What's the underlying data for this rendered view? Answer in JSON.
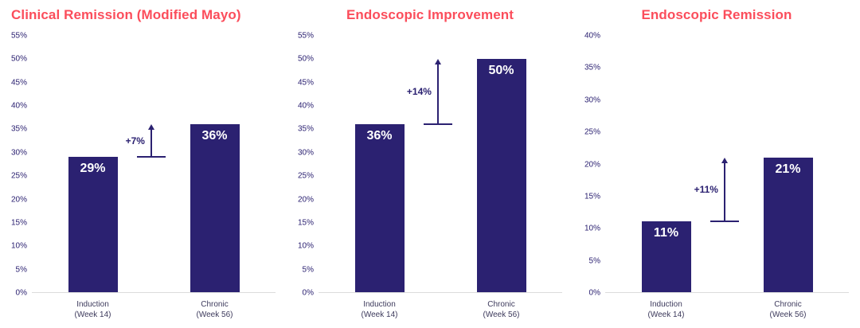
{
  "colors": {
    "title_red": "#FB4D5B",
    "bar_indigo": "#2B2171",
    "axis_text": "#2B2171",
    "category_text": "#3D3A5C",
    "baseline_gray": "#DCDCDC",
    "background": "#FFFFFF"
  },
  "chart_data": [
    {
      "type": "bar",
      "title": "Clinical Remission (Modified Mayo)",
      "categories": [
        {
          "label": "Induction",
          "sub": "(Week 14)"
        },
        {
          "label": "Chronic",
          "sub": "(Week 56)"
        }
      ],
      "values": [
        29,
        36
      ],
      "value_labels": [
        "29%",
        "36%"
      ],
      "delta": 7,
      "delta_label": "+7%",
      "ylim": [
        0,
        55
      ],
      "ytick_step": 5,
      "ytick_format": "percent",
      "grid": false,
      "legend": false
    },
    {
      "type": "bar",
      "title": "Endoscopic Improvement",
      "categories": [
        {
          "label": "Induction",
          "sub": "(Week 14)"
        },
        {
          "label": "Chronic",
          "sub": "(Week 56)"
        }
      ],
      "values": [
        36,
        50
      ],
      "value_labels": [
        "36%",
        "50%"
      ],
      "delta": 14,
      "delta_label": "+14%",
      "ylim": [
        0,
        55
      ],
      "ytick_step": 5,
      "ytick_format": "percent",
      "grid": false,
      "legend": false
    },
    {
      "type": "bar",
      "title": "Endoscopic Remission",
      "categories": [
        {
          "label": "Induction",
          "sub": "(Week 14)"
        },
        {
          "label": "Chronic",
          "sub": "(Week 56)"
        }
      ],
      "values": [
        11,
        21
      ],
      "value_labels": [
        "11%",
        "21%"
      ],
      "delta": 11,
      "delta_label": "+11%",
      "ylim": [
        0,
        40
      ],
      "ytick_step": 5,
      "ytick_format": "percent",
      "grid": false,
      "legend": false
    }
  ]
}
